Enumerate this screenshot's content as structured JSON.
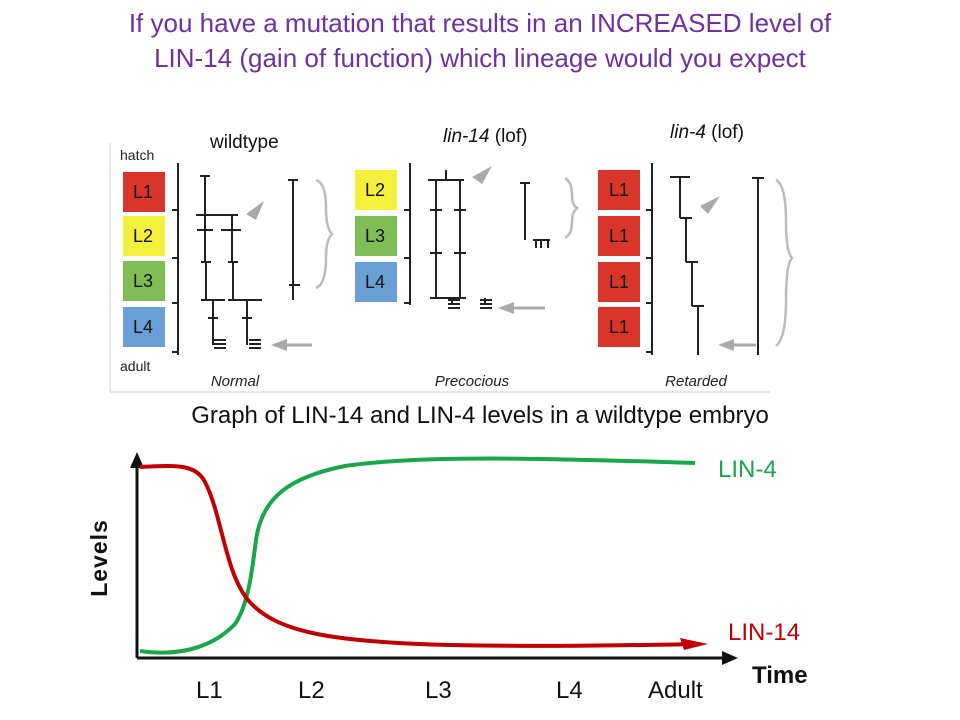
{
  "question": {
    "line1": "If you have a mutation that results in an INCREASED level of",
    "line2": "LIN-14 (gain of function) which lineage would you expect"
  },
  "lineages": {
    "stage_labels": {
      "hatch": "hatch",
      "adult": "adult"
    },
    "panels": [
      {
        "id": "normal",
        "header": {
          "gene": "wildtype",
          "suffix": "",
          "italic": false
        },
        "caption": "Normal",
        "stages": [
          "L1",
          "L2",
          "L3",
          "L4"
        ],
        "stage_colors": [
          "#d9352b",
          "#f4ef3a",
          "#7fbe55",
          "#6a9fd6"
        ]
      },
      {
        "id": "precocious",
        "header": {
          "gene": "lin-14",
          "suffix": " (lof)",
          "italic": true
        },
        "caption": "Precocious",
        "stages": [
          "L2",
          "L3",
          "L4"
        ],
        "stage_colors": [
          "#f4ef3a",
          "#7fbe55",
          "#6a9fd6"
        ]
      },
      {
        "id": "retarded",
        "header": {
          "gene": "lin-4",
          "suffix": " (lof)",
          "italic": true
        },
        "caption": "Retarded",
        "stages": [
          "L1",
          "L1",
          "L1",
          "L1"
        ],
        "stage_colors": [
          "#d9352b",
          "#d9352b",
          "#d9352b",
          "#d9352b"
        ]
      }
    ]
  },
  "graph": {
    "title": "Graph of LIN-14 and LIN-4 levels in a wildtype embryo",
    "ylabel": "Levels",
    "xlabel": "Time",
    "stage_ticks": [
      "L1",
      "L2",
      "L3",
      "L4",
      "Adult"
    ],
    "series": [
      {
        "name": "LIN-4",
        "color": "#1aa64a"
      },
      {
        "name": "LIN-14",
        "color": "#c00000"
      }
    ]
  }
}
